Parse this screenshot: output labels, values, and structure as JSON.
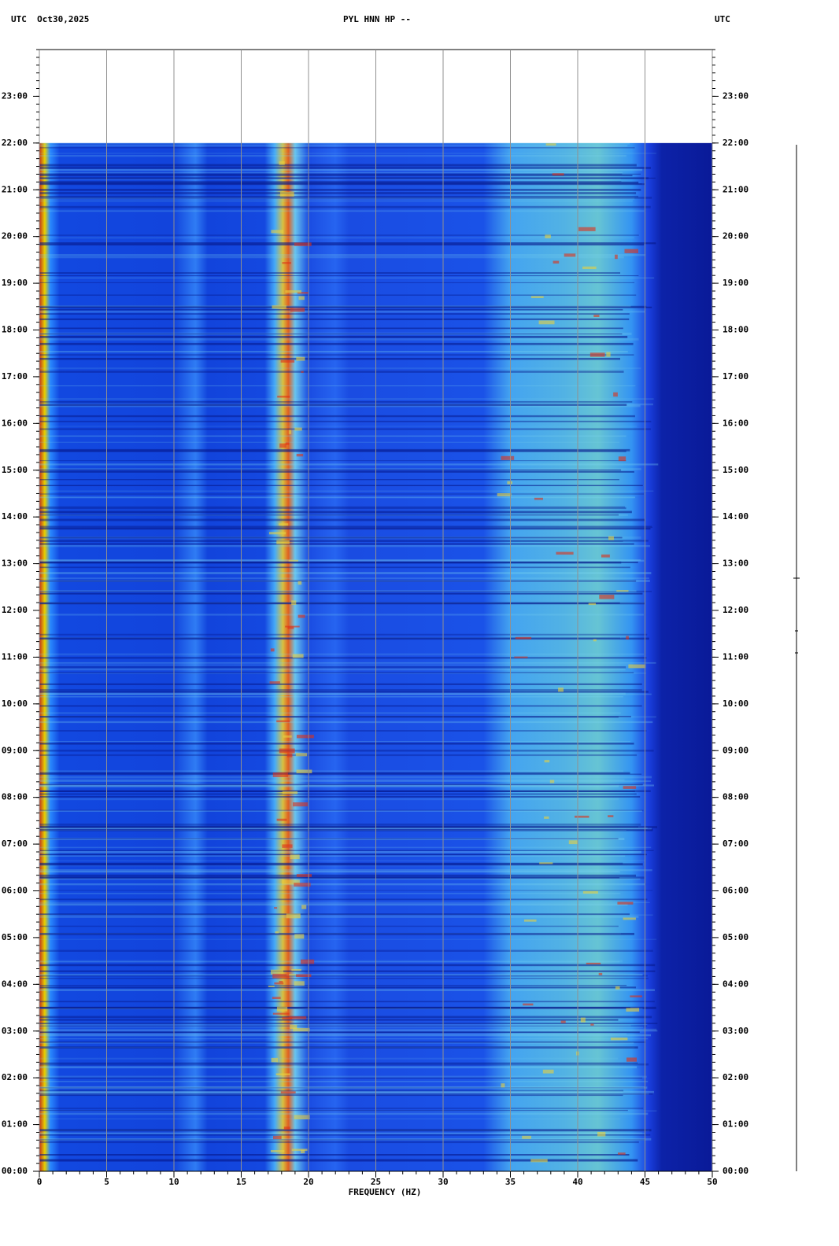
{
  "chart_data": {
    "type": "spectrogram",
    "header_left": "UTC  Oct30,2025",
    "title": "PYL HNN HP --",
    "header_right": "UTC",
    "x_label": "FREQUENCY (HZ)",
    "xlim": [
      0,
      50
    ],
    "xticks": [
      0,
      5,
      10,
      15,
      20,
      25,
      30,
      35,
      40,
      45,
      50
    ],
    "ylim": [
      0,
      24
    ],
    "data_ylim": [
      0,
      22
    ],
    "yticks": [
      {
        "value": 0,
        "label": "00:00"
      },
      {
        "value": 1,
        "label": "01:00"
      },
      {
        "value": 2,
        "label": "02:00"
      },
      {
        "value": 3,
        "label": "03:00"
      },
      {
        "value": 4,
        "label": "04:00"
      },
      {
        "value": 5,
        "label": "05:00"
      },
      {
        "value": 6,
        "label": "06:00"
      },
      {
        "value": 7,
        "label": "07:00"
      },
      {
        "value": 8,
        "label": "08:00"
      },
      {
        "value": 9,
        "label": "09:00"
      },
      {
        "value": 10,
        "label": "10:00"
      },
      {
        "value": 11,
        "label": "11:00"
      },
      {
        "value": 12,
        "label": "12:00"
      },
      {
        "value": 13,
        "label": "13:00"
      },
      {
        "value": 14,
        "label": "14:00"
      },
      {
        "value": 15,
        "label": "15:00"
      },
      {
        "value": 16,
        "label": "16:00"
      },
      {
        "value": 17,
        "label": "17:00"
      },
      {
        "value": 18,
        "label": "18:00"
      },
      {
        "value": 19,
        "label": "19:00"
      },
      {
        "value": 20,
        "label": "20:00"
      },
      {
        "value": 21,
        "label": "21:00"
      },
      {
        "value": 22,
        "label": "22:00"
      },
      {
        "value": 23,
        "label": "23:00"
      }
    ],
    "grid": true,
    "grid_color": "#909090"
  }
}
